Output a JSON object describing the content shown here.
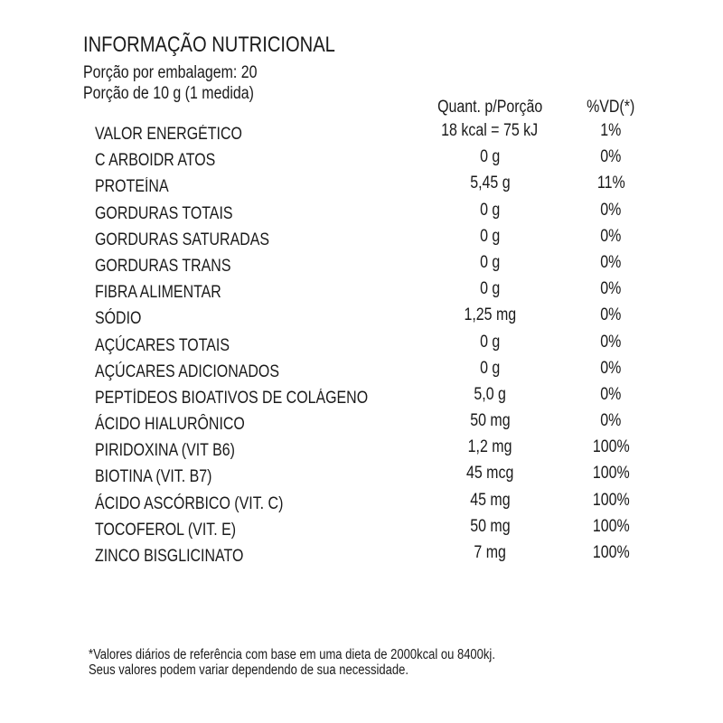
{
  "title": "INFORMAÇÃO NUTRICIONAL",
  "servings_per_package": "Porção por embalagem: 20",
  "serving_size": "Porção de 10 g (1 medida)",
  "headers": {
    "quantity": "Quant. p/Porção",
    "dv": "%VD(*)"
  },
  "rows": [
    {
      "label": "VALOR ENERGÉTICO",
      "quantity": "18 kcal = 75 kJ",
      "dv": "1%"
    },
    {
      "label": "C ARBOIDR ATOS",
      "quantity": "0 g",
      "dv": "0%"
    },
    {
      "label": "PROTEÍNA",
      "quantity": "5,45 g",
      "dv": "11%"
    },
    {
      "label": "GORDURAS TOTAIS",
      "quantity": "0 g",
      "dv": "0%"
    },
    {
      "label": "GORDURAS SATURADAS",
      "quantity": "0 g",
      "dv": "0%"
    },
    {
      "label": "GORDURAS TRANS",
      "quantity": "0 g",
      "dv": "0%"
    },
    {
      "label": "FIBRA ALIMENTAR",
      "quantity": "0 g",
      "dv": "0%"
    },
    {
      "label": "SÓDIO",
      "quantity": "1,25 mg",
      "dv": "0%"
    },
    {
      "label": "AÇÚCARES TOTAIS",
      "quantity": "0 g",
      "dv": "0%"
    },
    {
      "label": "AÇÚCARES ADICIONADOS",
      "quantity": "0 g",
      "dv": "0%"
    },
    {
      "label": "PEPTÍDEOS BIOATIVOS DE COLÁGENO",
      "quantity": "5,0 g",
      "dv": "0%"
    },
    {
      "label": "ÁCIDO HIALURÔNICO",
      "quantity": "50 mg",
      "dv": "0%"
    },
    {
      "label": "PIRIDOXINA (VIT B6)",
      "quantity": "1,2 mg",
      "dv": "100%"
    },
    {
      "label": "BIOTINA (VIT. B7)",
      "quantity": "45 mcg",
      "dv": "100%"
    },
    {
      "label": "ÁCIDO ASCÓRBICO (VIT. C)",
      "quantity": "45 mg",
      "dv": "100%"
    },
    {
      "label": "TOCOFEROL (VIT. E)",
      "quantity": "50 mg",
      "dv": "100%"
    },
    {
      "label": "ZINCO BISGLICINATO",
      "quantity": "7 mg",
      "dv": "100%"
    }
  ],
  "footnote": [
    "*Valores diários de referência com base em uma dieta de 2000kcal ou 8400kj.",
    "Seus valores podem variar dependendo de sua necessidade."
  ]
}
